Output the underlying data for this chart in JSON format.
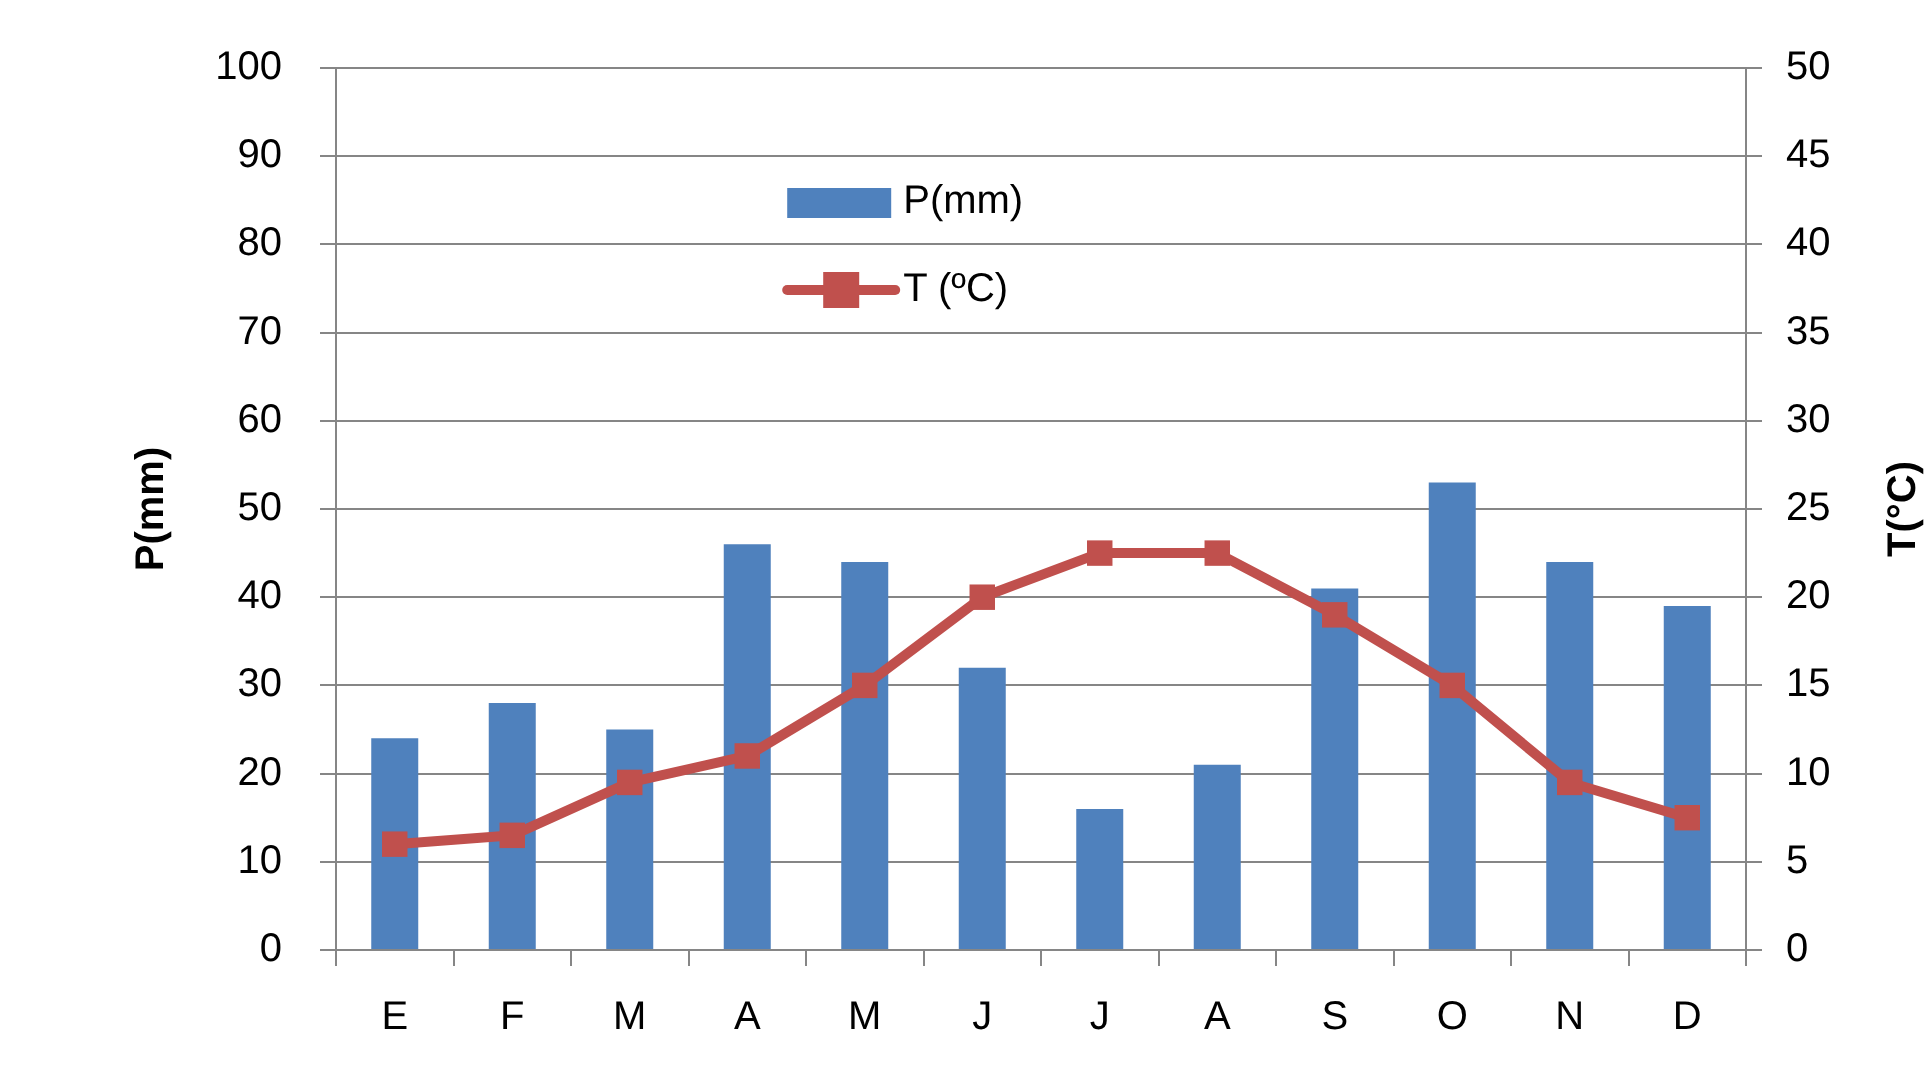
{
  "chart_data": {
    "type": "bar",
    "categories": [
      "E",
      "F",
      "M",
      "A",
      "M",
      "J",
      "J",
      "A",
      "S",
      "O",
      "N",
      "D"
    ],
    "series": [
      {
        "name": "P(mm)",
        "color": "#4f81bd",
        "values": [
          24,
          28,
          25,
          46,
          44,
          32,
          16,
          21,
          41,
          53,
          44,
          39
        ]
      },
      {
        "name": "T (ºC)",
        "type": "line",
        "axis": "y2",
        "color": "#c0504d",
        "values": [
          6,
          6.5,
          9.5,
          11,
          15,
          20,
          22.5,
          22.5,
          19,
          15,
          9.5,
          7.5
        ]
      }
    ],
    "ylabel": "P(mm)",
    "y2label": "T(°C)",
    "ylim": [
      0,
      100
    ],
    "yticks": [
      0,
      10,
      20,
      30,
      40,
      50,
      60,
      70,
      80,
      90,
      100
    ],
    "y2lim": [
      0,
      50
    ],
    "y2ticks": [
      0,
      5,
      10,
      15,
      20,
      25,
      30,
      35,
      40,
      45,
      50
    ],
    "grid": "y",
    "legend": "top",
    "marker": "square",
    "line_style": "solid"
  }
}
